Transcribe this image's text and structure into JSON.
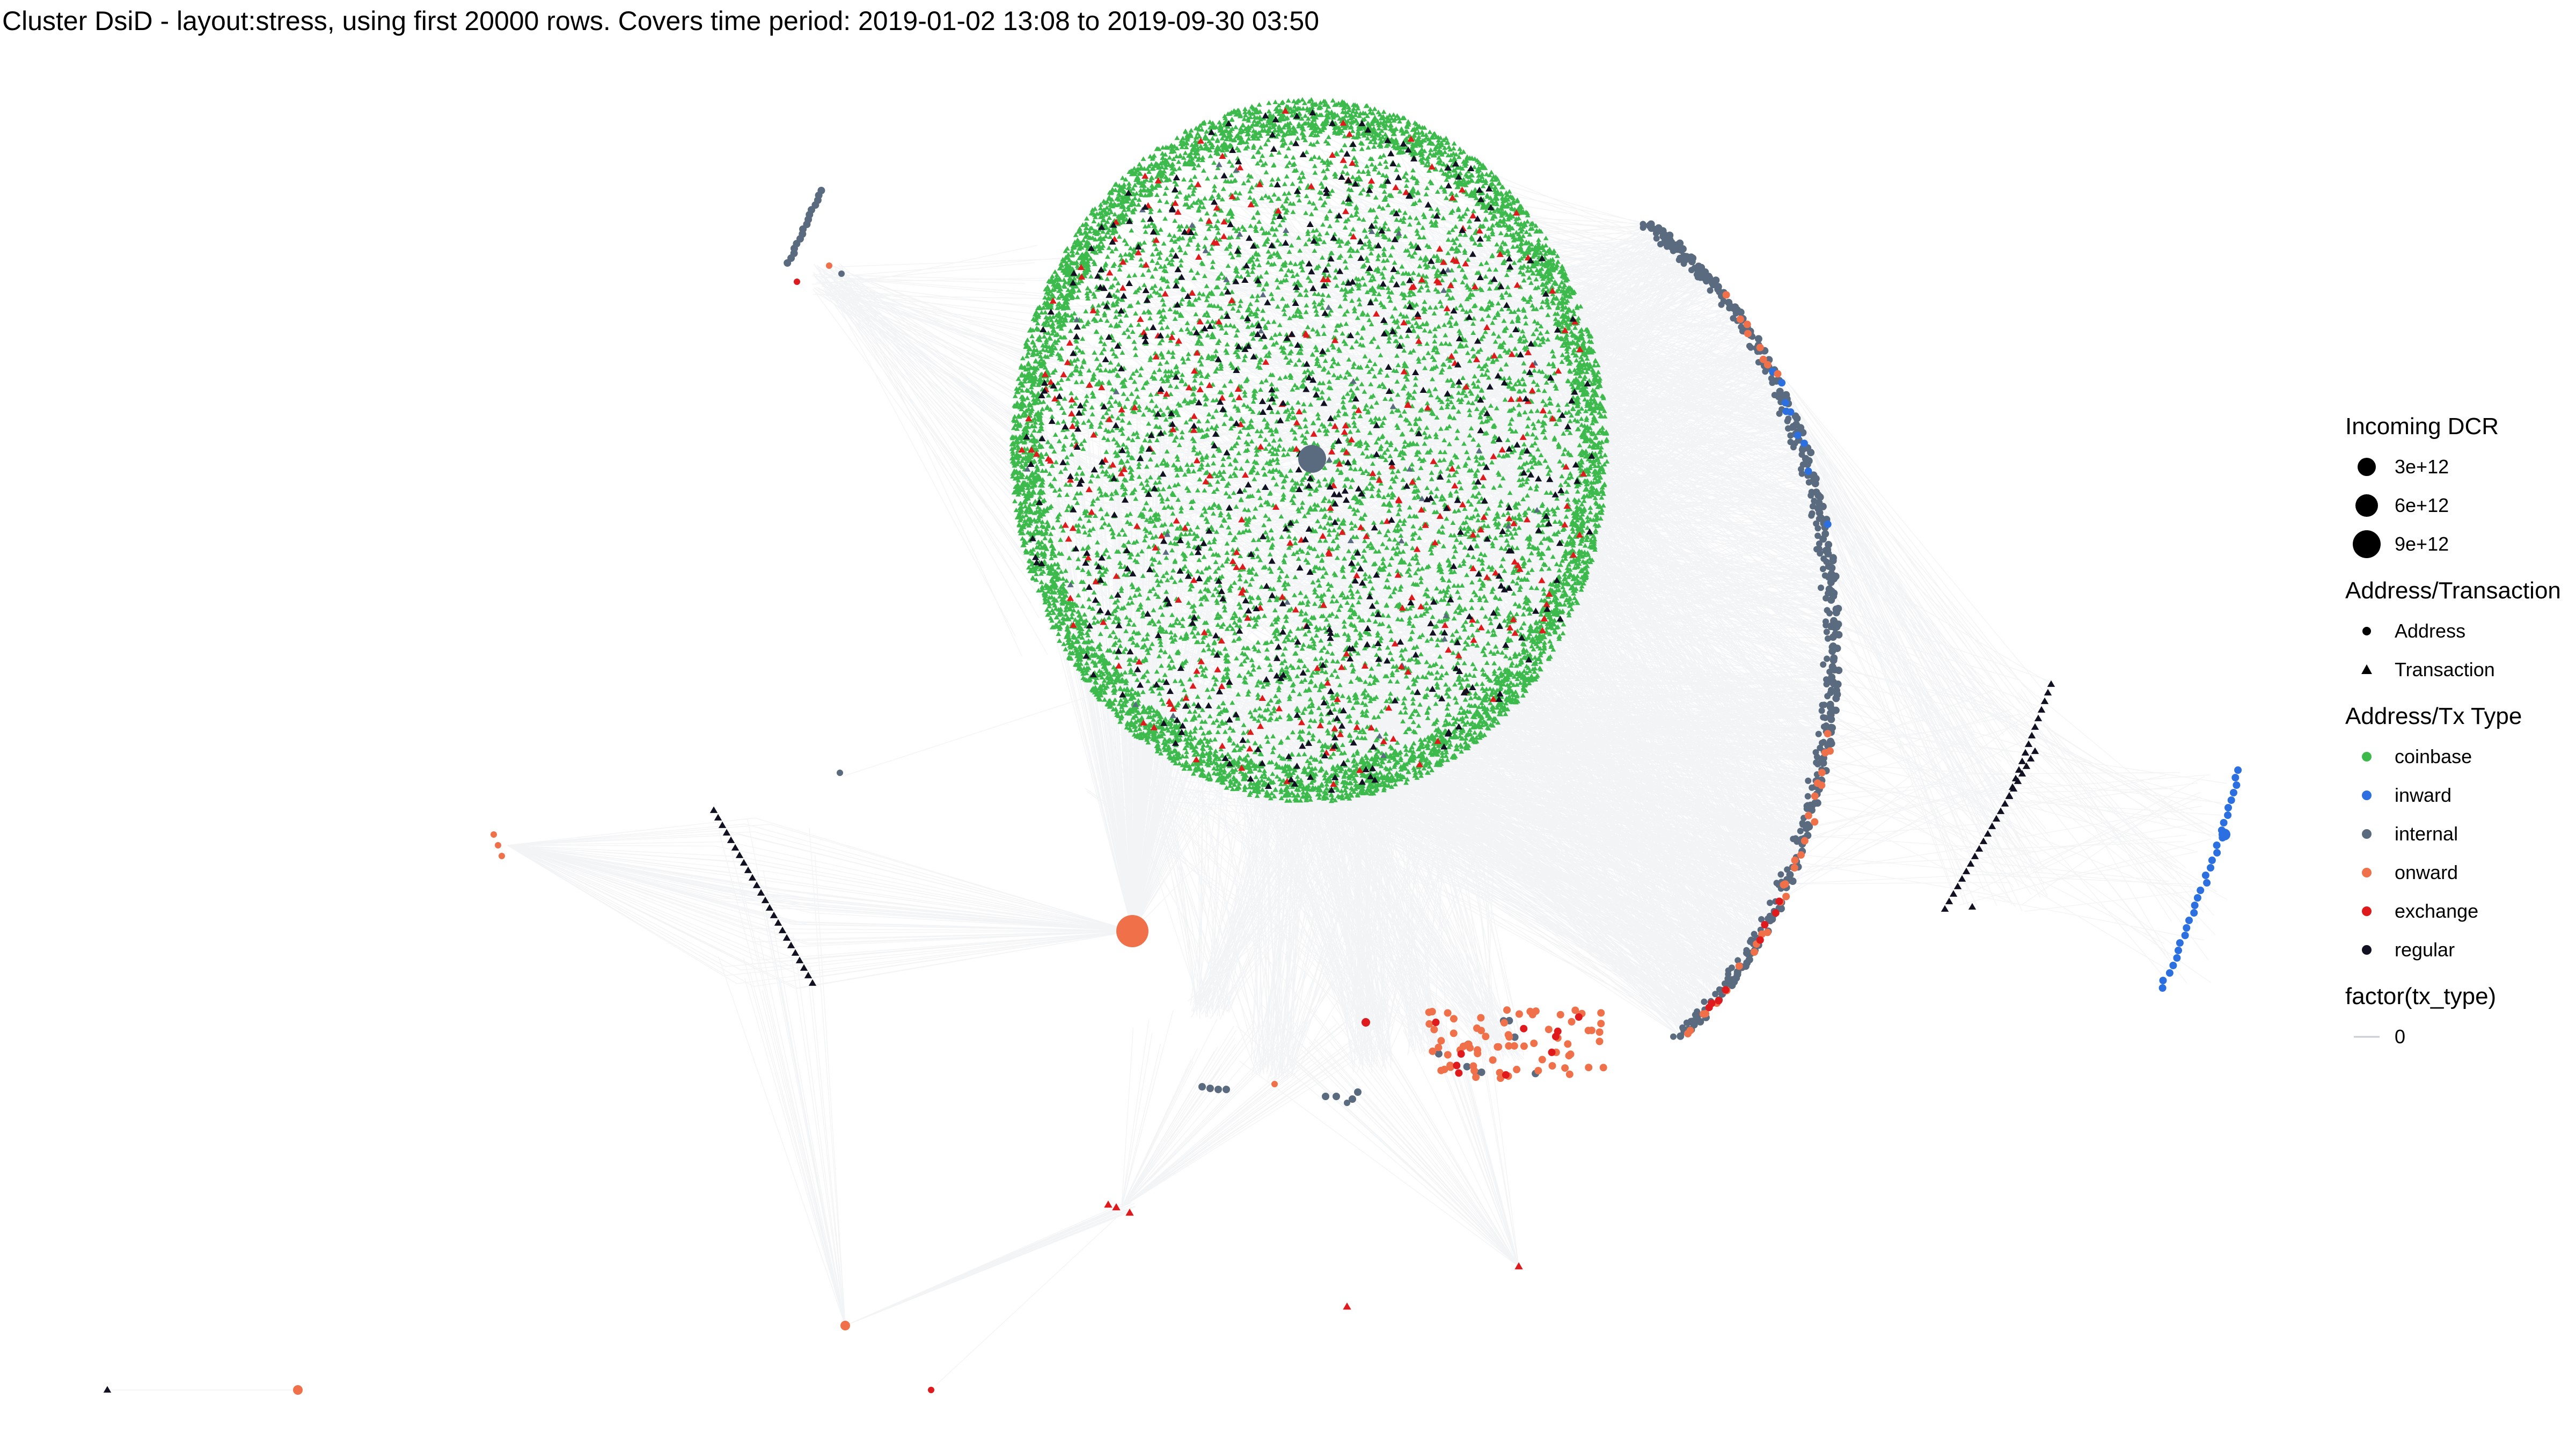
{
  "title": "Cluster DsiD - layout:stress, using first 20000 rows. Covers time period: 2019-01-02 13:08 to 2019-09-30 03:50",
  "colors": {
    "coinbase": "#3cba4b",
    "inward": "#2b6fe0",
    "internal": "#5a6b80",
    "onward": "#f0704a",
    "exchange": "#e0191c",
    "regular": "#111122",
    "edge": "#c8cdd4"
  },
  "legend": {
    "size_title": "Incoming DCR",
    "size_items": [
      "3e+12",
      "6e+12",
      "9e+12"
    ],
    "shape_title": "Address/Transaction",
    "shape_items": [
      {
        "label": "Address",
        "shape": "circle"
      },
      {
        "label": "Transaction",
        "shape": "triangle"
      }
    ],
    "type_title": "Address/Tx Type",
    "type_items": [
      {
        "label": "coinbase",
        "key": "coinbase"
      },
      {
        "label": "inward",
        "key": "inward"
      },
      {
        "label": "internal",
        "key": "internal"
      },
      {
        "label": "onward",
        "key": "onward"
      },
      {
        "label": "exchange",
        "key": "exchange"
      },
      {
        "label": "regular",
        "key": "regular"
      }
    ],
    "edge_title": "factor(tx_type)",
    "edge_items": [
      "0"
    ]
  }
}
